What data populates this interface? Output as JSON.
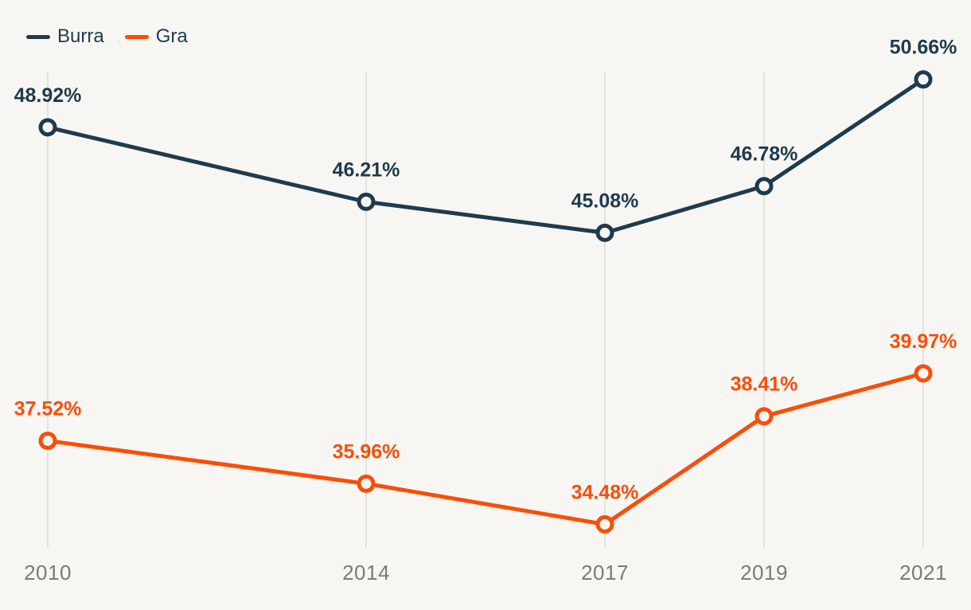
{
  "page": {
    "background_color": "#f7f6f3",
    "gridline_color": "#e4e2de",
    "tick_label_color": "#7c7a76"
  },
  "legend": {
    "items": [
      {
        "label": "Burra",
        "color": "#1e3b4d"
      },
      {
        "label": "Gra",
        "color": "#fa4d08"
      }
    ]
  },
  "chart_data": {
    "type": "line",
    "title": "",
    "xlabel": "",
    "ylabel": "",
    "x": [
      2010,
      2014,
      2017,
      2019,
      2021
    ],
    "x_tick_labels": [
      "2010",
      "2014",
      "2017",
      "2019",
      "2021"
    ],
    "xlim": [
      2010,
      2021
    ],
    "ylim": [
      34,
      51
    ],
    "grid": "vertical-only",
    "legend_position": "top-left",
    "marker": "open-circle",
    "marker_fill": "#f7f6f3",
    "value_label_format": "0.00%",
    "series": [
      {
        "name": "Burra",
        "color": "#1e3b4d",
        "values": [
          48.92,
          46.21,
          45.08,
          46.78,
          50.66
        ],
        "labels": [
          "48.92%",
          "46.21%",
          "45.08%",
          "46.78%",
          "50.66%"
        ]
      },
      {
        "name": "Gra",
        "color": "#fa4d08",
        "values": [
          37.52,
          35.96,
          34.48,
          38.41,
          39.97
        ],
        "labels": [
          "37.52%",
          "35.96%",
          "34.48%",
          "38.41%",
          "39.97%"
        ]
      }
    ]
  }
}
